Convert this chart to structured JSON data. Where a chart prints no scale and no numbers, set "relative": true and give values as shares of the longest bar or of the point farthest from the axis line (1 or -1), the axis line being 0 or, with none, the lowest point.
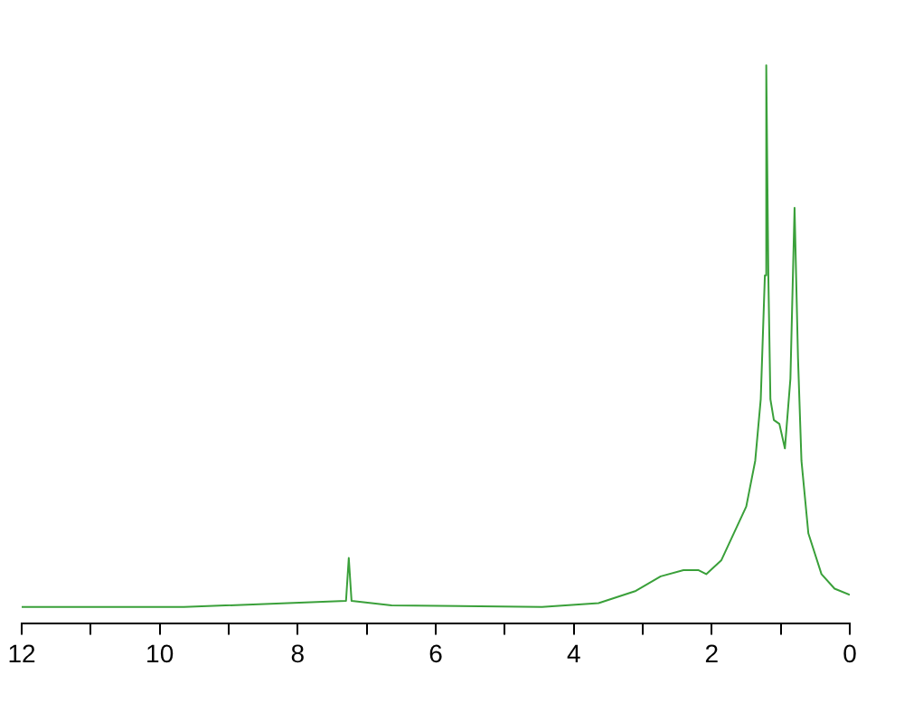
{
  "chart_data": {
    "type": "line",
    "relative": true,
    "xlim": [
      12,
      0
    ],
    "xticks": [
      12,
      {
        "value": 11,
        "label": null
      },
      10,
      {
        "value": 9,
        "label": null
      },
      8,
      {
        "value": 7,
        "label": null
      },
      6,
      {
        "value": 5,
        "label": null
      },
      4,
      {
        "value": 3,
        "label": null
      },
      2,
      {
        "value": 1,
        "label": null
      },
      0
    ],
    "x": [
      12,
      9.65,
      7.3,
      7.26,
      7.22,
      6.64,
      4.46,
      3.64,
      3.1,
      2.74,
      2.41,
      2.19,
      2.08,
      1.86,
      1.5,
      1.37,
      1.29,
      1.23,
      1.21,
      1.18,
      1.15,
      1.1,
      1.02,
      0.94,
      0.86,
      0.8,
      0.75,
      0.7,
      0.6,
      0.41,
      0.22,
      0
    ],
    "series": [
      {
        "color": "#3aa03a",
        "values": [
          0.03,
          0.03,
          0.041,
          0.118,
          0.041,
          0.033,
          0.03,
          0.037,
          0.059,
          0.085,
          0.096,
          0.096,
          0.089,
          0.114,
          0.21,
          0.292,
          0.402,
          0.624,
          1,
          0.624,
          0.402,
          0.365,
          0.358,
          0.314,
          0.439,
          0.745,
          0.476,
          0.292,
          0.162,
          0.089,
          0.063,
          0.052
        ]
      }
    ],
    "grid": false,
    "legend": false,
    "marker": "none",
    "line_style": "solid"
  }
}
